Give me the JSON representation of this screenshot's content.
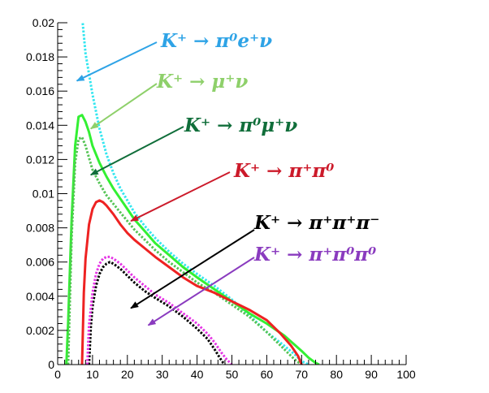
{
  "chart_data": {
    "type": "line",
    "title": "",
    "xlabel": "",
    "ylabel": "",
    "xlim": [
      0,
      100
    ],
    "ylim": [
      0,
      0.02
    ],
    "grid": false,
    "xticks": [
      "0",
      "10",
      "20",
      "30",
      "40",
      "50",
      "60",
      "70",
      "80",
      "90",
      "100"
    ],
    "yticks": [
      "0",
      "0.002",
      "0.004",
      "0.006",
      "0.008",
      "0.01",
      "0.012",
      "0.014",
      "0.016",
      "0.018",
      "0.02"
    ],
    "series": [
      {
        "name": "K⁺ → π⁰e⁺ν",
        "color": "#33e6f0",
        "style": "dotted",
        "x": [
          7,
          8,
          10,
          12,
          14,
          16,
          18,
          20,
          22,
          25,
          28,
          32,
          36,
          40,
          45,
          50,
          55,
          60,
          65,
          68,
          70,
          72
        ],
        "y": [
          0.0204,
          0.0182,
          0.0158,
          0.0138,
          0.0123,
          0.0112,
          0.0103,
          0.0096,
          0.0089,
          0.0081,
          0.0074,
          0.0066,
          0.0059,
          0.0053,
          0.0046,
          0.0038,
          0.0029,
          0.0019,
          0.0011,
          0.0006,
          0.0002,
          0.0
        ]
      },
      {
        "name": "K⁺ → μ⁺ν",
        "color": "#33f033",
        "style": "solid",
        "x": [
          2.5,
          3,
          4,
          5,
          6,
          7,
          8,
          9,
          10,
          12,
          14,
          16,
          18,
          20,
          22,
          25,
          28,
          32,
          36,
          40,
          45,
          50,
          55,
          60,
          65,
          70,
          72,
          74,
          75
        ],
        "y": [
          0.0,
          0.0025,
          0.0085,
          0.0128,
          0.0145,
          0.0146,
          0.0142,
          0.0136,
          0.0128,
          0.0118,
          0.011,
          0.0103,
          0.0097,
          0.0091,
          0.0085,
          0.0078,
          0.0071,
          0.0064,
          0.0057,
          0.0051,
          0.0044,
          0.0037,
          0.003,
          0.0024,
          0.0017,
          0.0008,
          0.0004,
          0.0001,
          0.0
        ]
      },
      {
        "name": "K⁺ → π⁰μ⁺ν",
        "color": "#55c455",
        "style": "dotted",
        "x": [
          3,
          4,
          5,
          6,
          7,
          8,
          9,
          10,
          12,
          14,
          16,
          18,
          20,
          22,
          25,
          28,
          32,
          36,
          40,
          45,
          50,
          55,
          60,
          65,
          68,
          70
        ],
        "y": [
          0.0,
          0.0075,
          0.0118,
          0.0132,
          0.0133,
          0.0128,
          0.0121,
          0.0114,
          0.0106,
          0.0099,
          0.0094,
          0.0089,
          0.0084,
          0.0079,
          0.0073,
          0.0067,
          0.006,
          0.0054,
          0.0048,
          0.0042,
          0.0035,
          0.0028,
          0.0019,
          0.0009,
          0.0003,
          0.0
        ]
      },
      {
        "name": "K⁺ → π⁺π⁰",
        "color": "#ee2222",
        "style": "solid",
        "x": [
          7,
          7.5,
          8,
          9,
          10,
          11,
          12,
          13,
          14,
          16,
          18,
          20,
          22,
          25,
          28,
          32,
          36,
          40,
          45,
          50,
          55,
          60,
          64,
          67,
          69,
          70
        ],
        "y": [
          0.0,
          0.0042,
          0.0062,
          0.0082,
          0.0091,
          0.0095,
          0.0096,
          0.0095,
          0.0093,
          0.0088,
          0.0082,
          0.0077,
          0.0073,
          0.0068,
          0.0063,
          0.0057,
          0.0051,
          0.0046,
          0.0042,
          0.0037,
          0.0032,
          0.0026,
          0.0018,
          0.0011,
          0.0005,
          0.0
        ]
      },
      {
        "name": "K⁺ → π⁺π⁺π⁻",
        "color": "#000000",
        "style": "dotted",
        "x": [
          9,
          9.5,
          10,
          11,
          12,
          13,
          14,
          15,
          16,
          18,
          20,
          22,
          25,
          28,
          32,
          36,
          40,
          43,
          45,
          46.5,
          47.5,
          48
        ],
        "y": [
          0.0,
          0.0022,
          0.0034,
          0.0046,
          0.0053,
          0.0057,
          0.0059,
          0.006,
          0.0059,
          0.0056,
          0.0052,
          0.0048,
          0.0043,
          0.0039,
          0.0034,
          0.0028,
          0.0021,
          0.0015,
          0.0009,
          0.0004,
          0.0001,
          0.0
        ]
      },
      {
        "name": "K⁺ → π⁺π⁰π⁰",
        "color": "#e533e5",
        "style": "dotted",
        "x": [
          8.5,
          9,
          10,
          11,
          12,
          13,
          14,
          15,
          16,
          18,
          20,
          22,
          25,
          28,
          32,
          36,
          40,
          43,
          45,
          47,
          48.5,
          49.5,
          50
        ],
        "y": [
          0.0,
          0.0023,
          0.0042,
          0.0053,
          0.0059,
          0.0062,
          0.0063,
          0.0063,
          0.0062,
          0.0059,
          0.0055,
          0.0051,
          0.0046,
          0.0041,
          0.0036,
          0.003,
          0.0024,
          0.0018,
          0.0013,
          0.0007,
          0.0003,
          0.0001,
          0.0
        ]
      }
    ],
    "annotations": [
      {
        "text": "K⁺ → π⁰e⁺ν",
        "color": "#2ea3e6",
        "arrow_to": [
          5.5,
          0.0166
        ]
      },
      {
        "text": "K⁺ → μ⁺ν",
        "color": "#8ed06a",
        "arrow_to": [
          9.5,
          0.0138
        ]
      },
      {
        "text": "K⁺ → π⁰μ⁺ν",
        "color": "#106e3a",
        "arrow_to": [
          9.5,
          0.0111
        ]
      },
      {
        "text": "K⁺ → π⁺π⁰",
        "color": "#cc1a2a",
        "arrow_to": [
          21,
          0.0084
        ]
      },
      {
        "text": "K⁺ → π⁺π⁺π⁻",
        "color": "#000000",
        "arrow_to": [
          21,
          0.0033
        ]
      },
      {
        "text": "K⁺ → π⁺π⁰π⁰",
        "color": "#8a3bbf",
        "arrow_to": [
          26,
          0.0023
        ]
      }
    ]
  }
}
